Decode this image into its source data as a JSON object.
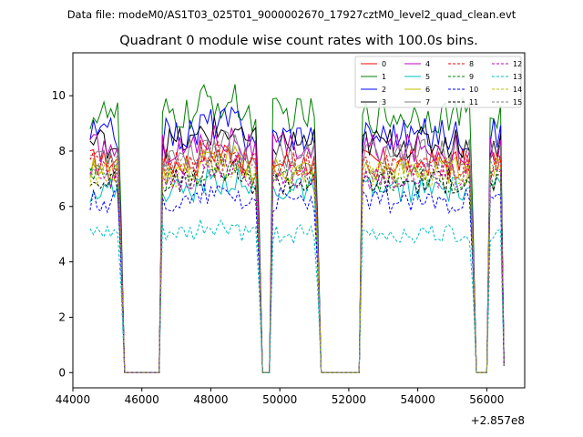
{
  "chart_data": {
    "type": "line",
    "suptitle": "Data file: modeM0/AS1T03_025T01_9000002670_17927cztM0_level2_quad_clean.evt",
    "title": "Quadrant 0 module wise count rates with 100.0s bins.",
    "xlabel": "",
    "ylabel": "",
    "x_offset_label": "+2.857e8",
    "xlim": [
      44000,
      57100
    ],
    "ylim": [
      -0.55,
      11.55
    ],
    "x_ticks": [
      44000,
      46000,
      48000,
      50000,
      52000,
      54000,
      56000
    ],
    "x_tick_labels": [
      "44000",
      "46000",
      "48000",
      "50000",
      "52000",
      "54000",
      "56000"
    ],
    "y_ticks": [
      0,
      2,
      4,
      6,
      8,
      10
    ],
    "y_tick_labels": [
      "0",
      "2",
      "4",
      "6",
      "8",
      "10"
    ],
    "grid": false,
    "legend_position": "top-right",
    "bin_seconds": 100,
    "segments": [
      {
        "start": 44500,
        "end": 45400
      },
      {
        "start": 46600,
        "end": 49400
      },
      {
        "start": 49800,
        "end": 51100
      },
      {
        "start": 52400,
        "end": 55600
      },
      {
        "start": 56100,
        "end": 56500
      }
    ],
    "series": [
      {
        "name": "0",
        "color": "#ff0000",
        "dash": "solid",
        "level": 7.6
      },
      {
        "name": "1",
        "color": "#008000",
        "dash": "solid",
        "level": 9.3
      },
      {
        "name": "2",
        "color": "#0000ff",
        "dash": "solid",
        "level": 8.6
      },
      {
        "name": "3",
        "color": "#000000",
        "dash": "solid",
        "level": 8.3
      },
      {
        "name": "4",
        "color": "#bf00bf",
        "dash": "solid",
        "level": 8.1
      },
      {
        "name": "5",
        "color": "#00bfbf",
        "dash": "solid",
        "level": 6.6
      },
      {
        "name": "6",
        "color": "#bfbf00",
        "dash": "solid",
        "level": 7.3
      },
      {
        "name": "7",
        "color": "#808080",
        "dash": "solid",
        "level": 7.9
      },
      {
        "name": "8",
        "color": "#ff0000",
        "dash": "dashed",
        "level": 7.5
      },
      {
        "name": "9",
        "color": "#008000",
        "dash": "dashed",
        "level": 7.0
      },
      {
        "name": "10",
        "color": "#0000ff",
        "dash": "dashed",
        "level": 6.2
      },
      {
        "name": "11",
        "color": "#000000",
        "dash": "dashed",
        "level": 6.9
      },
      {
        "name": "12",
        "color": "#bf00bf",
        "dash": "dashed",
        "level": 7.1
      },
      {
        "name": "13",
        "color": "#00bfbf",
        "dash": "dashed",
        "level": 5.0
      },
      {
        "name": "14",
        "color": "#bfbf00",
        "dash": "dashed",
        "level": 7.2
      },
      {
        "name": "15",
        "color": "#808080",
        "dash": "dashed",
        "level": 7.4
      }
    ]
  }
}
